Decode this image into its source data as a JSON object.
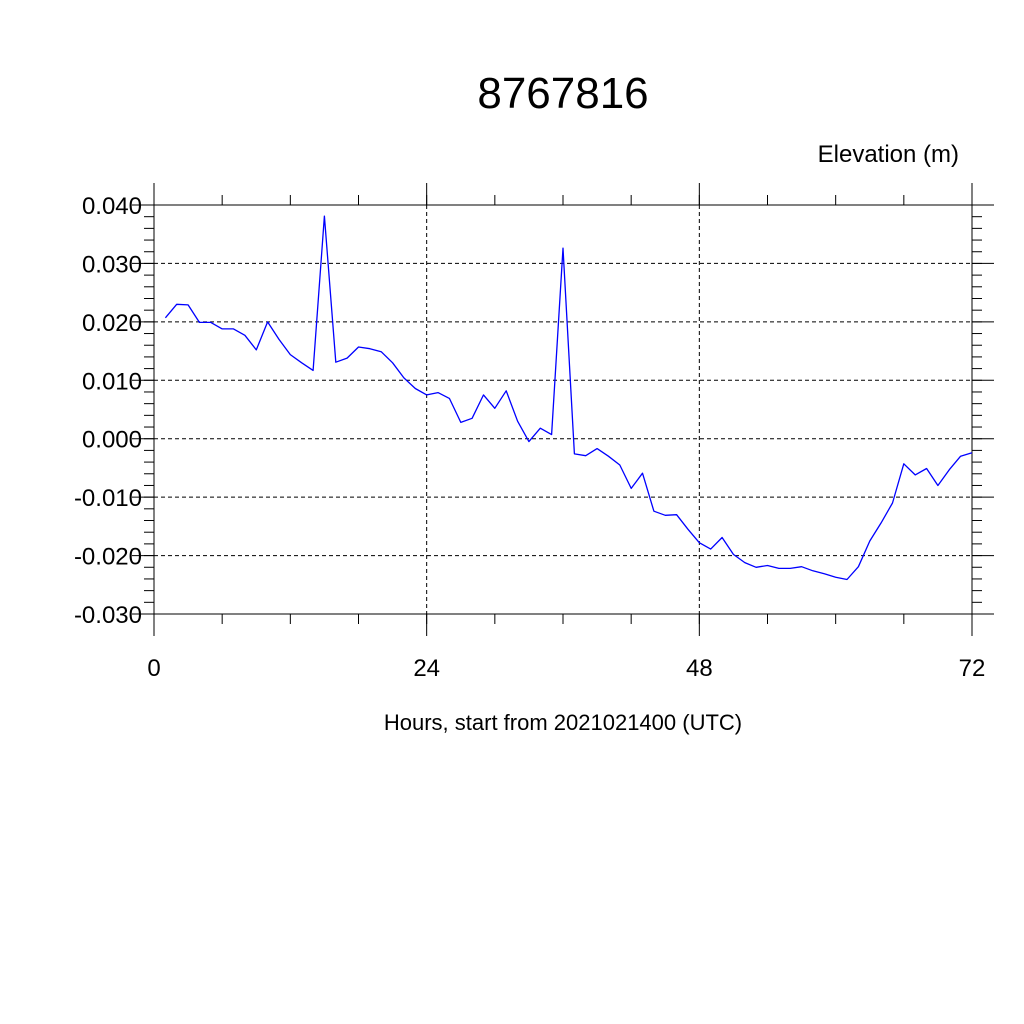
{
  "chart_data": {
    "type": "line",
    "title": "8767816",
    "ylabel": "Elevation (m)",
    "xlabel": "Hours, start from 2021021400 (UTC)",
    "xlim": [
      0,
      72
    ],
    "ylim": [
      -0.03,
      0.04
    ],
    "x_ticks": [
      0,
      24,
      48,
      72
    ],
    "x_tick_labels": [
      "0",
      "24",
      "48",
      "72"
    ],
    "y_ticks": [
      -0.03,
      -0.02,
      -0.01,
      0.0,
      0.01,
      0.02,
      0.03,
      0.04
    ],
    "y_tick_labels": [
      "-0.030",
      "-0.020",
      "-0.010",
      "0.000",
      "0.010",
      "0.020",
      "0.030",
      "0.040"
    ],
    "grid": true,
    "line_color": "#0000ff",
    "series": [
      {
        "x": [
          1,
          2,
          3,
          4,
          5,
          6,
          7,
          8,
          9,
          10,
          11,
          12,
          13,
          14,
          15,
          16,
          17,
          18,
          19,
          20,
          21,
          22,
          23,
          24,
          25,
          26,
          27,
          28,
          29,
          30,
          31,
          32,
          33,
          34,
          35,
          36,
          37,
          38,
          39,
          40,
          41,
          42,
          43,
          44,
          45,
          46,
          47,
          48,
          49,
          50,
          51,
          52,
          53,
          54,
          55,
          56,
          57,
          58,
          59,
          60,
          61,
          62,
          63,
          64,
          65,
          66,
          67,
          68,
          69,
          70,
          71,
          72
        ],
        "values": [
          0.0207,
          0.023,
          0.0229,
          0.0199,
          0.0199,
          0.0188,
          0.0188,
          0.0177,
          0.0152,
          0.02,
          0.017,
          0.0144,
          0.013,
          0.0117,
          0.0381,
          0.0131,
          0.0138,
          0.0157,
          0.0154,
          0.0149,
          0.013,
          0.0104,
          0.0086,
          0.0075,
          0.0079,
          0.0069,
          0.0028,
          0.0035,
          0.0075,
          0.0052,
          0.0082,
          0.003,
          -0.0005,
          0.0018,
          0.0007,
          0.0326,
          -0.0026,
          -0.0029,
          -0.0017,
          -0.003,
          -0.0045,
          -0.0085,
          -0.0059,
          -0.0124,
          -0.0131,
          -0.013,
          -0.0155,
          -0.0178,
          -0.0189,
          -0.0169,
          -0.0198,
          -0.0212,
          -0.022,
          -0.0217,
          -0.0222,
          -0.0222,
          -0.0219,
          -0.0226,
          -0.0231,
          -0.0237,
          -0.0241,
          -0.0219,
          -0.0175,
          -0.0144,
          -0.011,
          -0.0043,
          -0.0062,
          -0.0051,
          -0.008,
          -0.0053,
          -0.003,
          -0.0024
        ]
      }
    ]
  }
}
